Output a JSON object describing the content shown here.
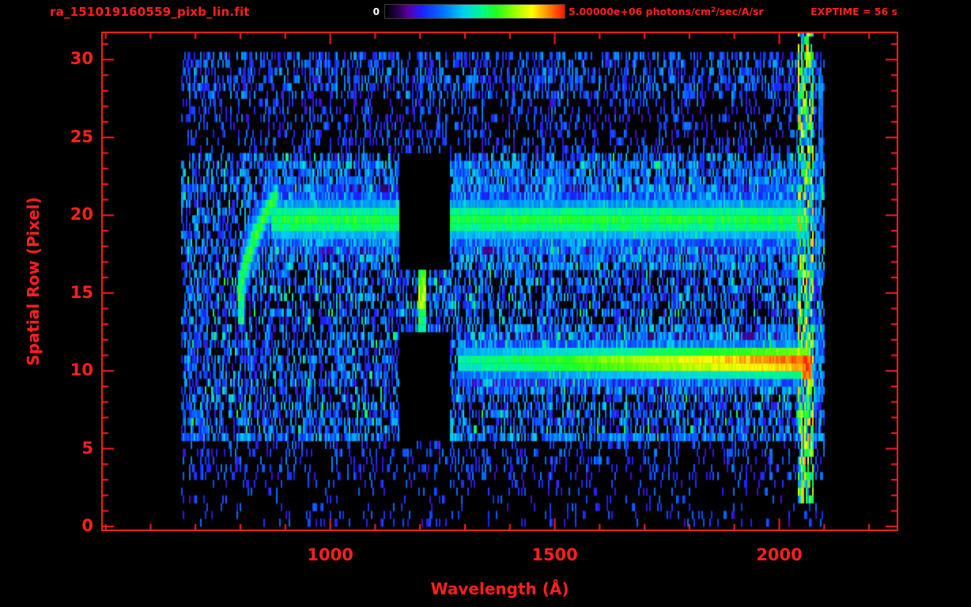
{
  "header": {
    "title": "ra_151019160559_pixb_lin.fit",
    "colorbar": {
      "min_label": "0",
      "max_value": "5.00000e+06",
      "units_prefix": " photons/cm",
      "units_sup": "2",
      "units_suffix": "/sec/A/sr"
    },
    "exptime": "EXPTIME = 56 s"
  },
  "colors": {
    "axis": "#ff1f1f",
    "background": "#000000",
    "colorbar_min_text": "#ffffff"
  },
  "chart_data": {
    "type": "heatmap",
    "title": "ra_151019160559_pixb_lin.fit",
    "xlabel": "Wavelength (Å)",
    "ylabel": "Spatial Row (Pixel)",
    "xlim": [
      490,
      2265
    ],
    "ylim": [
      -0.3,
      31.8
    ],
    "xticks": [
      1000,
      1500,
      2000
    ],
    "xtick_minor_step": 100,
    "yticks": [
      0,
      5,
      10,
      15,
      20,
      25,
      30
    ],
    "ytick_minor_step": 1,
    "colorbar_range": {
      "min": 0,
      "max": 5000000,
      "min_label": "0",
      "max_label": "5.00000e+06",
      "units": "photons/cm^2/sec/A/sr"
    },
    "exposure_time_s": 56,
    "data_extent": {
      "wavelength": [
        668,
        2100
      ],
      "row": [
        0,
        30.5
      ]
    },
    "colormap_stops": [
      [
        0.0,
        [
          0,
          0,
          0
        ]
      ],
      [
        0.06,
        [
          35,
          0,
          60
        ]
      ],
      [
        0.13,
        [
          90,
          0,
          170
        ]
      ],
      [
        0.2,
        [
          30,
          30,
          255
        ]
      ],
      [
        0.33,
        [
          0,
          120,
          255
        ]
      ],
      [
        0.44,
        [
          0,
          210,
          235
        ]
      ],
      [
        0.54,
        [
          0,
          250,
          140
        ]
      ],
      [
        0.62,
        [
          30,
          255,
          30
        ]
      ],
      [
        0.72,
        [
          150,
          255,
          0
        ]
      ],
      [
        0.82,
        [
          255,
          255,
          0
        ]
      ],
      [
        0.9,
        [
          255,
          150,
          0
        ]
      ],
      [
        1.0,
        [
          255,
          20,
          0
        ]
      ]
    ],
    "features": {
      "slit_row_range": [
        6,
        24
      ],
      "bottom_line_row": 5.75,
      "trace_upper": {
        "row_center": 19.7,
        "row_sigma": 1.05,
        "wave_range": [
          868,
          2056
        ],
        "peak": 0.6
      },
      "trace_lower": {
        "row_center": 10.6,
        "row_sigma": 0.8,
        "wave_range": [
          1283,
          2062
        ],
        "peak_start": 0.52,
        "peak_end": 0.97
      },
      "hook": {
        "wave_range": [
          793,
          884
        ],
        "row_start": 13.2,
        "row_end": 21.4,
        "peak": 0.62,
        "tail_row_range": [
          12.9,
          16.6
        ]
      },
      "airglow_line": {
        "wave_center": 1205,
        "wave_width": 16,
        "row_range": [
          12.7,
          16.4
        ],
        "peak": 0.62
      },
      "detector_gap": {
        "wave_range": [
          1155,
          1268
        ],
        "row_range": [
          5.6,
          24.2
        ],
        "open_row_range": [
          12.6,
          16.4
        ]
      },
      "right_edge": {
        "wave_range": [
          2042,
          2078
        ],
        "red_spot": {
          "wave_range": [
            2052,
            2072
          ],
          "row_range": [
            9.6,
            11.2
          ]
        }
      },
      "right_streak": {
        "wave_range": [
          2086,
          2097
        ],
        "row_range": [
          23,
          29.5
        ]
      }
    }
  }
}
